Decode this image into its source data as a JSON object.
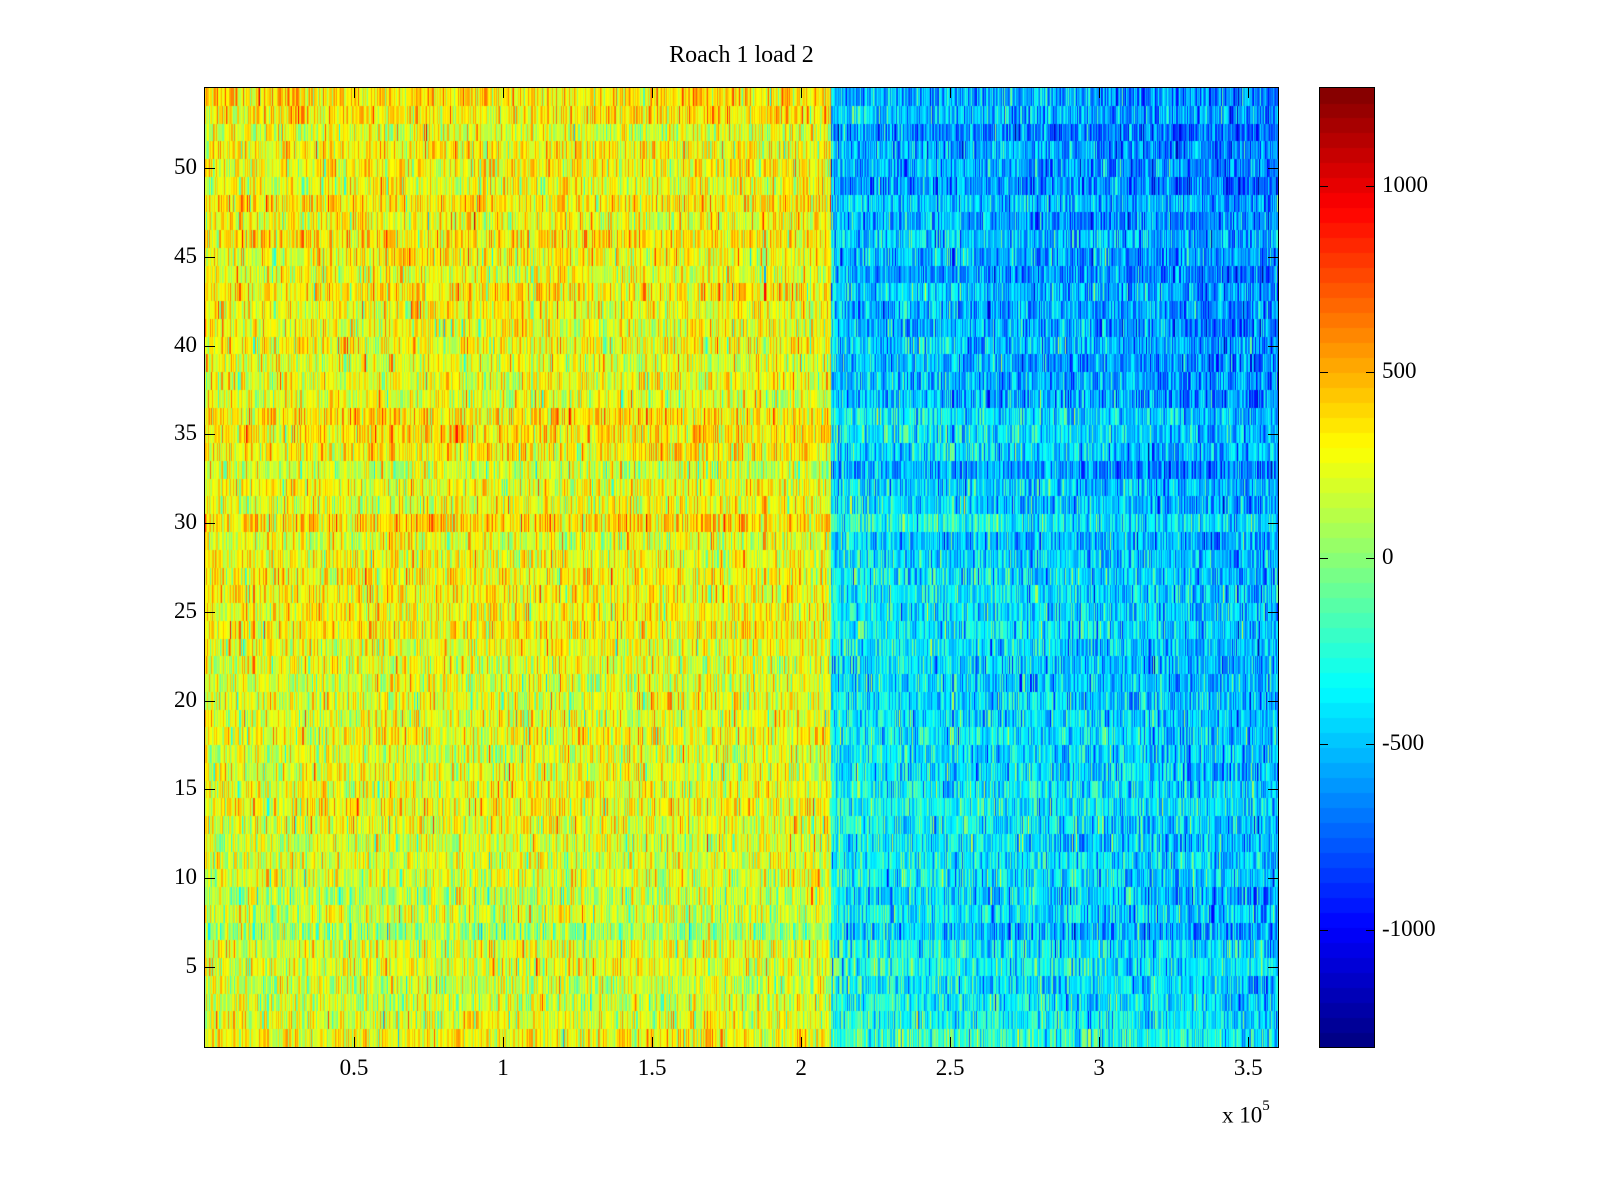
{
  "chart_data": {
    "type": "heatmap",
    "title": "Roach 1 load 2",
    "xlabel": "",
    "ylabel": "",
    "x_exponent_label": {
      "base": "x 10",
      "exponent": "5"
    },
    "xlim": [
      0,
      3.6
    ],
    "ylim": [
      0.5,
      54.5
    ],
    "rows": 54,
    "columns": 1073,
    "clim": [
      -1315,
      1263
    ],
    "colormap": "jet",
    "x_ticks": [
      0.5,
      1,
      1.5,
      2,
      2.5,
      3,
      3.5
    ],
    "x_tick_labels": [
      "0.5",
      "1",
      "1.5",
      "2",
      "2.5",
      "3",
      "3.5"
    ],
    "y_ticks": [
      5,
      10,
      15,
      20,
      25,
      30,
      35,
      40,
      45,
      50
    ],
    "y_tick_labels": [
      "5",
      "10",
      "15",
      "20",
      "25",
      "30",
      "35",
      "40",
      "45",
      "50"
    ],
    "colorbar_ticks": [
      1000,
      500,
      0,
      -500,
      -1000
    ],
    "colorbar_tick_labels": [
      "1000",
      "500",
      "0",
      "-500",
      "-1000"
    ],
    "regions": [
      {
        "x_range": [
          0,
          2.1
        ],
        "mean_bottom_rows": 180,
        "mean_top_rows": 300,
        "noise_sd": 190
      },
      {
        "x_range": [
          2.1,
          3.6
        ],
        "mean_bottom_rows": -280,
        "mean_top_rows": -520,
        "noise_sd": 200
      }
    ],
    "grid": false
  }
}
